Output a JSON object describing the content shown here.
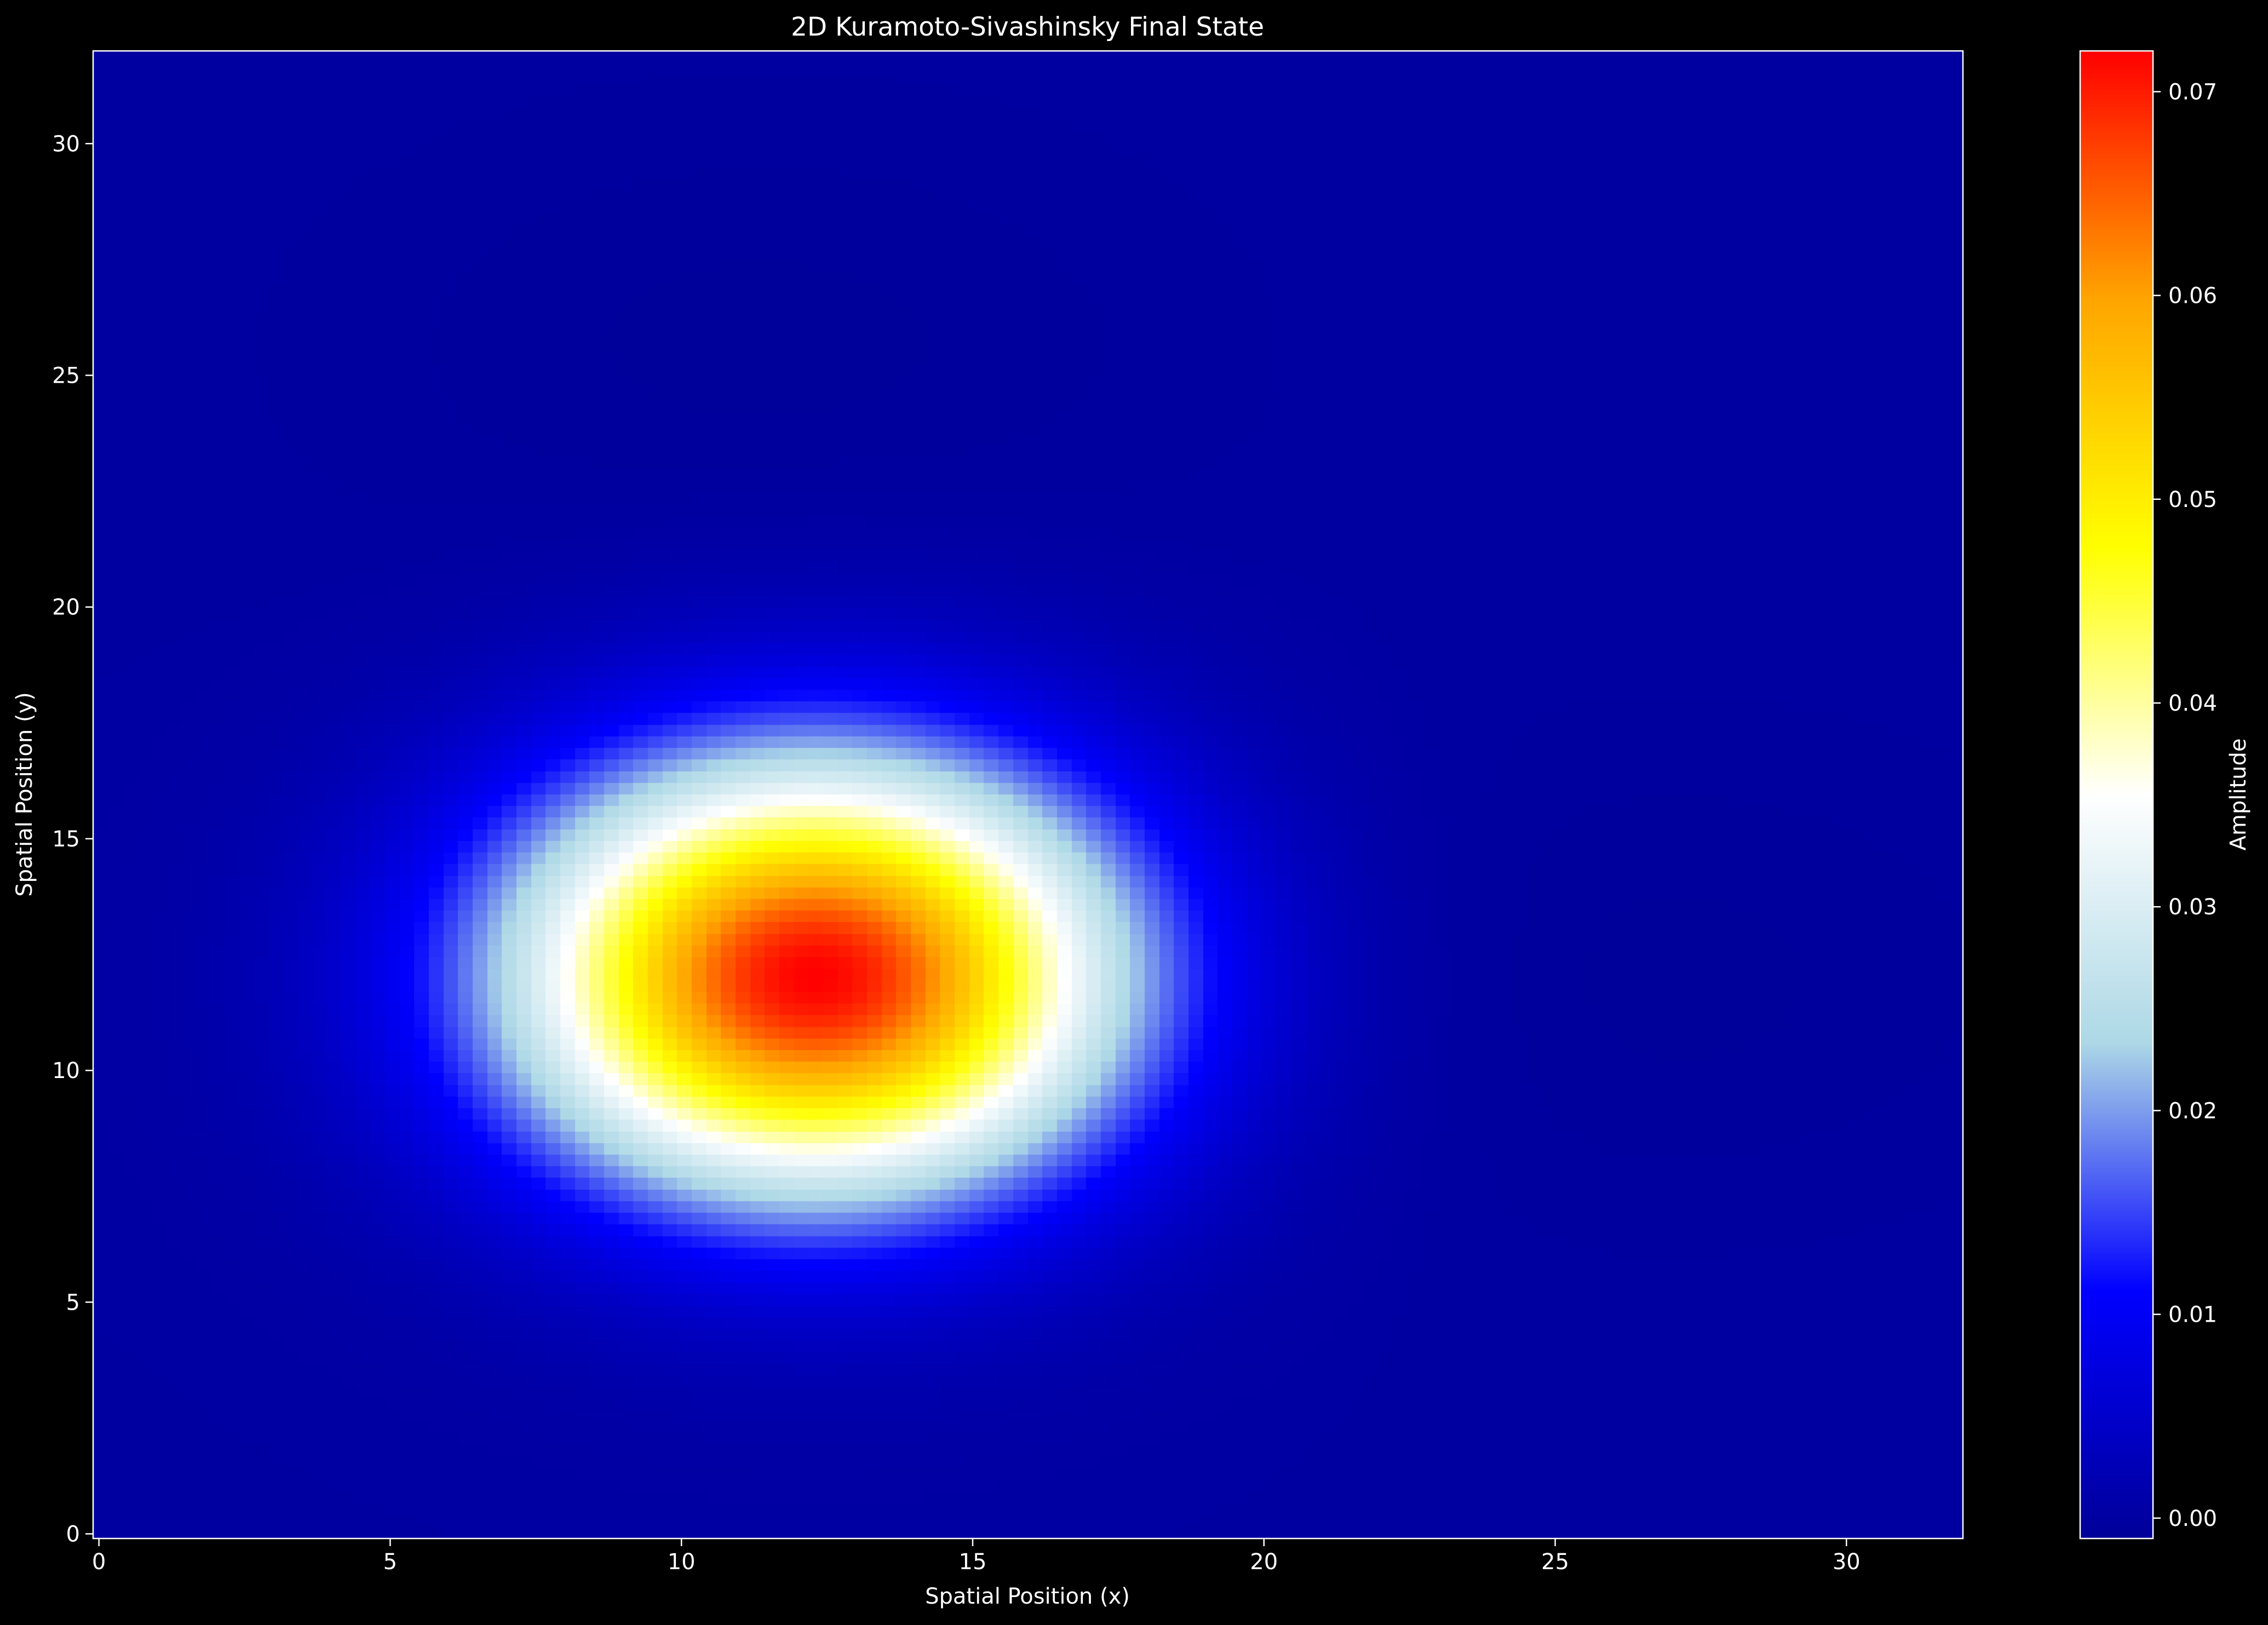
{
  "chart_data": {
    "type": "heatmap",
    "title": "2D Kuramoto-Sivashinsky Final State",
    "xlabel": "Spatial Position (x)",
    "ylabel": "Spatial Position (y)",
    "xlim": [
      -0.1,
      32.0
    ],
    "ylim": [
      -0.1,
      32.0
    ],
    "x_ticks": [
      0,
      5,
      10,
      15,
      20,
      25,
      30
    ],
    "y_ticks": [
      0,
      5,
      10,
      15,
      20,
      25,
      30
    ],
    "grid": false,
    "colormap": [
      "#000099",
      "#0000ff",
      "#add8e6",
      "#ffffff",
      "#ffff00",
      "#ffa500",
      "#ff0000"
    ],
    "colorbar": {
      "label": "Amplitude",
      "range": [
        -0.001,
        0.072
      ],
      "ticks": [
        0.0,
        0.01,
        0.02,
        0.03,
        0.04,
        0.05,
        0.06,
        0.07
      ],
      "tick_labels": [
        "0.00",
        "0.01",
        "0.02",
        "0.03",
        "0.04",
        "0.05",
        "0.06",
        "0.07"
      ]
    },
    "field_features": [
      {
        "kind": "peak",
        "center_x": 12.3,
        "center_y": 12.0,
        "amplitude": 0.072,
        "sigma_x": 3.6,
        "sigma_y": 3.2
      },
      {
        "kind": "trough",
        "center_x": 11.5,
        "center_y": 25.5,
        "amplitude": -0.0008
      },
      {
        "kind": "trough",
        "center_x": 26.5,
        "center_y": 12.0,
        "amplitude": -0.0008
      }
    ]
  }
}
